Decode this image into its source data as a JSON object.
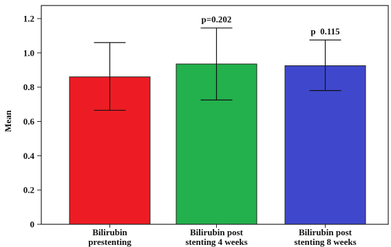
{
  "chart_data": {
    "type": "bar",
    "ylabel": "Mean",
    "ylim": [
      0,
      1.2
    ],
    "yticks": [
      "0",
      "0.2",
      "0.4",
      "0.6",
      "0.8",
      "1.0",
      "1.2"
    ],
    "categories": [
      [
        "Bilirubin",
        "prestenting"
      ],
      [
        "Bilirubin post",
        "stenting 4 weeks"
      ],
      [
        "Bilirubin post",
        "stenting 8 weeks"
      ]
    ],
    "values": [
      0.86,
      0.935,
      0.925
    ],
    "error_low": [
      0.665,
      0.725,
      0.78
    ],
    "error_high": [
      1.06,
      1.145,
      1.075
    ],
    "bar_colors": [
      "#ed1c24",
      "#22b14c",
      "#3f48cc"
    ],
    "annotations": [
      "",
      "p=0.202",
      "p  0.115"
    ],
    "grid": false
  }
}
